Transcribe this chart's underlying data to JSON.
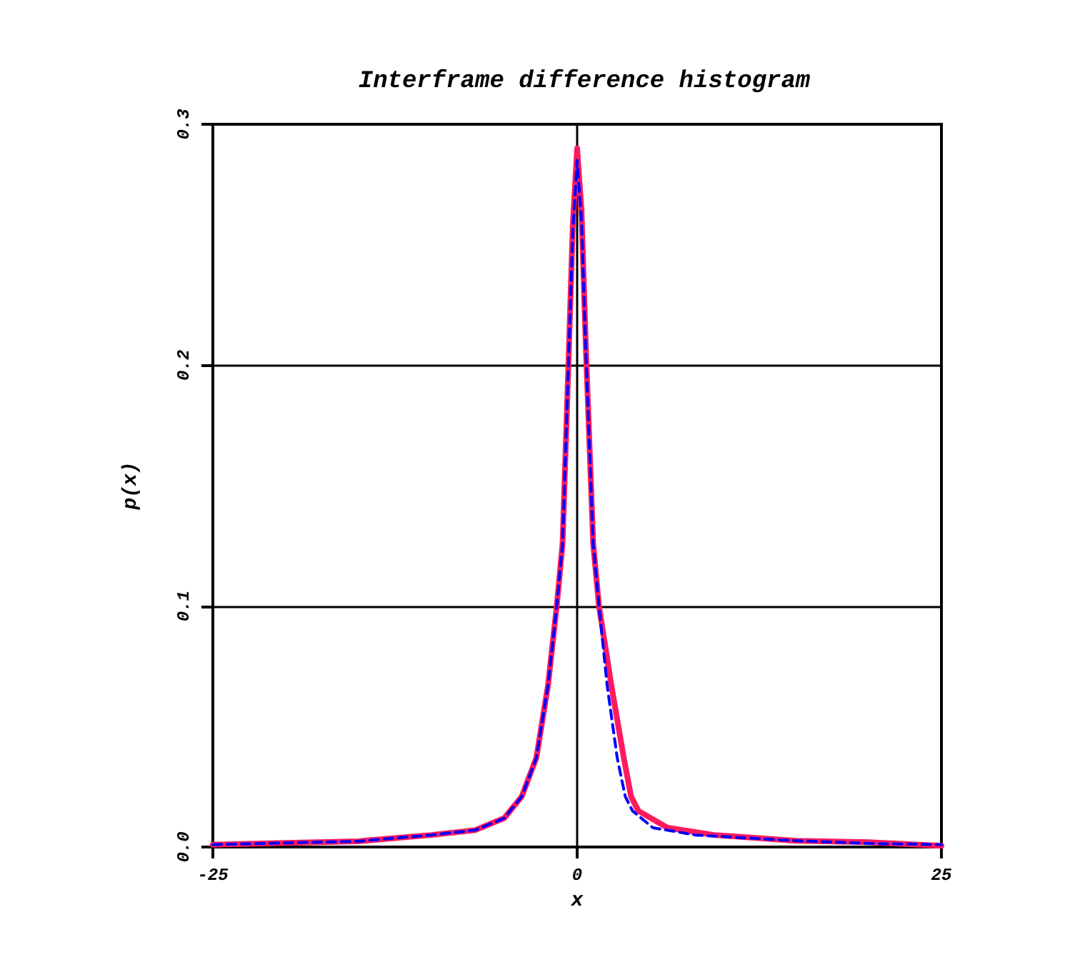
{
  "chart_data": {
    "type": "line",
    "title": "Interframe difference histogram",
    "xlabel": "x",
    "ylabel": "p(x)",
    "xlim": [
      -25,
      25
    ],
    "xticks": [
      -25,
      0,
      25
    ],
    "ylim": [
      0,
      0.3
    ],
    "yticks": [
      {
        "value": 0,
        "label": "0.0"
      },
      {
        "value": 0.1,
        "label": "0.1"
      },
      {
        "value": 0.2,
        "label": "0.2"
      },
      {
        "value": 0.3,
        "label": "0.3"
      }
    ],
    "grid": true,
    "legend": false,
    "marker": "none",
    "series": [
      {
        "color": "#ff1a5e",
        "line_style": "solid",
        "x": [
          -25,
          -20,
          -15,
          -10,
          -7,
          -5,
          -3.8,
          -2.8,
          -2,
          -1.4,
          -1,
          -0.6,
          -0.3,
          0,
          0.3,
          0.6,
          1.1,
          1.5,
          2.35,
          3.2,
          3.7,
          4.2,
          6.2,
          9.4,
          15,
          20,
          25
        ],
        "values": [
          0.001,
          0.0017,
          0.0024,
          0.005,
          0.007,
          0.012,
          0.021,
          0.037,
          0.067,
          0.1,
          0.126,
          0.2,
          0.258,
          0.29,
          0.264,
          0.207,
          0.126,
          0.1,
          0.067,
          0.037,
          0.021,
          0.015,
          0.008,
          0.005,
          0.0026,
          0.002,
          0.0005
        ]
      },
      {
        "color": "#0000ff",
        "line_style": "dashed",
        "x": [
          -25,
          -20,
          -15,
          -10,
          -7,
          -5,
          -3.8,
          -2.8,
          -2,
          -1.4,
          -1,
          -0.6,
          -0.3,
          0,
          0.3,
          0.6,
          1.1,
          1.5,
          2.06,
          2.75,
          3.3,
          3.8,
          5.2,
          8.1,
          15,
          20,
          25
        ],
        "values": [
          0.001,
          0.0017,
          0.0024,
          0.005,
          0.007,
          0.012,
          0.021,
          0.037,
          0.067,
          0.1,
          0.126,
          0.2,
          0.255,
          0.285,
          0.26,
          0.205,
          0.126,
          0.1,
          0.067,
          0.037,
          0.021,
          0.015,
          0.008,
          0.005,
          0.0026,
          0.0015,
          0.001
        ]
      }
    ]
  }
}
